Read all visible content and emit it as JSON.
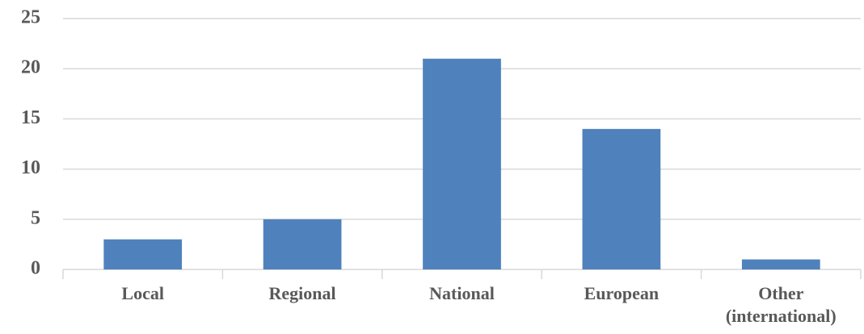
{
  "chart_data": {
    "type": "bar",
    "categories": [
      "Local",
      "Regional",
      "National",
      "European",
      "Other (international)"
    ],
    "values": [
      3,
      5,
      21,
      14,
      1
    ],
    "color": "#4f81bd",
    "ylim": [
      0,
      25
    ],
    "yticks": [
      0,
      5,
      10,
      15,
      20,
      25
    ],
    "grid": true
  }
}
